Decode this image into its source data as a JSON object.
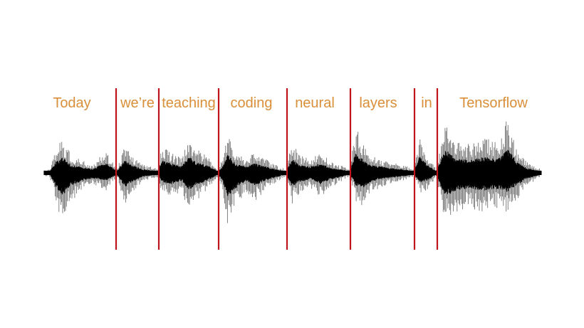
{
  "words": [
    "Today",
    "we’re",
    "teaching",
    "coding",
    "neural",
    "layers",
    "in",
    "Tensorflow"
  ],
  "colors": {
    "word": "#d98f3a",
    "divider": "#c0141c",
    "waveform": "#000000"
  }
}
